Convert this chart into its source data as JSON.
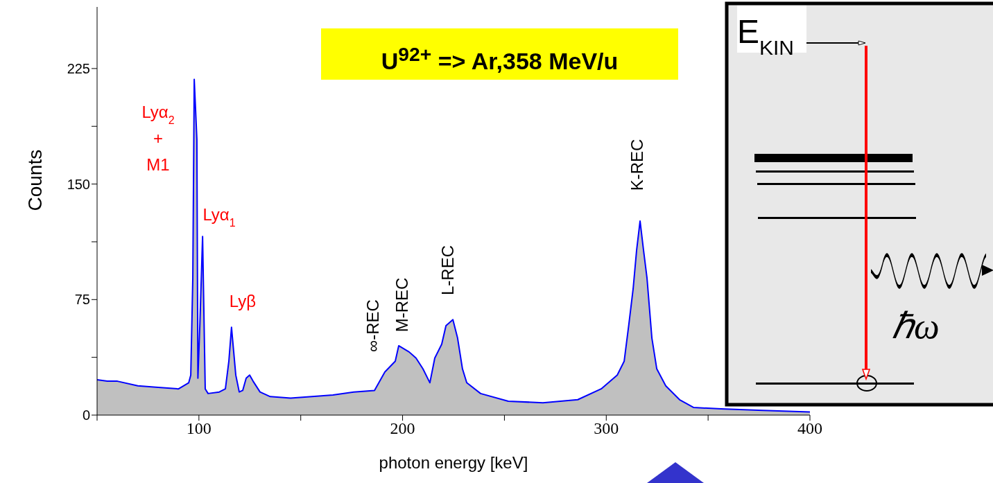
{
  "chart_data": {
    "type": "area",
    "title": "U$^{92+}$ => Ar,358 MeV/u",
    "xlabel": "photon energy [keV]",
    "ylabel": "Counts",
    "xlim": [
      50,
      400
    ],
    "ylim": [
      0,
      265
    ],
    "xticks": [
      {
        "value": 50,
        "label": null
      },
      100,
      {
        "value": 150,
        "label": null
      },
      200,
      {
        "value": 250,
        "label": null
      },
      300,
      {
        "value": 350,
        "label": null
      },
      400
    ],
    "yticks": [
      0,
      {
        "value": 37.5,
        "label": null
      },
      75,
      {
        "value": 112.5,
        "label": null
      },
      150,
      {
        "value": 187.5,
        "label": null
      },
      225
    ],
    "grid": false,
    "legend": false,
    "series": [
      {
        "color": "#0000ff",
        "x": [
          50,
          55,
          60,
          70,
          80,
          90,
          95,
          96,
          97,
          97.7,
          99,
          99.5,
          100.5,
          101.8,
          103.1,
          104.5,
          110,
          113,
          114.7,
          116,
          118.1,
          119.8,
          121.5,
          123.2,
          124.9,
          126.6,
          130,
          135,
          145,
          155.5,
          165.8,
          176,
          186.2,
          191.3,
          196.4,
          198.1,
          203.2,
          206.6,
          210,
          213.4,
          215.8,
          219.2,
          221.3,
          224.7,
          227,
          229.4,
          231.5,
          238.3,
          251.9,
          268.9,
          286,
          297.5,
          305.4,
          308.8,
          311.1,
          313.2,
          314.9,
          316.6,
          318.3,
          320,
          322.4,
          324.8,
          329.2,
          336,
          342.8,
          356.4,
          376.9,
          400
        ],
        "values": [
          23,
          22,
          22,
          19,
          18,
          17,
          21,
          26,
          89,
          218,
          179,
          24,
          60,
          116,
          17,
          14,
          15,
          17,
          35,
          57,
          26,
          15,
          16,
          24,
          26,
          22,
          15,
          12,
          11,
          12,
          13,
          15,
          16,
          28,
          35,
          45,
          41,
          37,
          30,
          21,
          37,
          46,
          58,
          62,
          50,
          30,
          21,
          14,
          9,
          8,
          10,
          17,
          26,
          35,
          59,
          82,
          107,
          126,
          107,
          89,
          50,
          30,
          19,
          10,
          5,
          4,
          3,
          2
        ]
      }
    ],
    "annotations": [
      "Lyα$_{2}$\n+\nM1",
      "Lyα$_{1}$",
      "Lyβ",
      "∞-REC",
      "M-REC",
      "L-REC",
      "K-REC",
      "E$_{KIN}$",
      "ℏω"
    ]
  }
}
